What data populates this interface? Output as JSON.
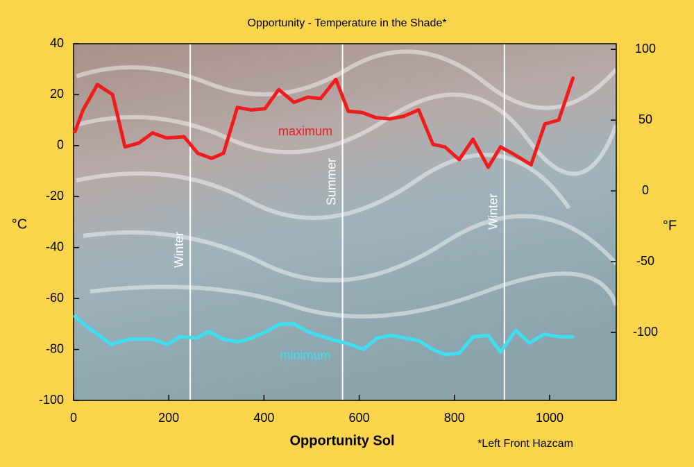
{
  "chart_data": {
    "type": "line",
    "title": "Opportunity - Temperature in the Shade*",
    "xlabel": "Opportunity Sol",
    "ylabel": "°C",
    "y2label": "°F",
    "footnote": "*Left Front Hazcam",
    "xlim": [
      0,
      1140
    ],
    "xticks": [
      0,
      200,
      400,
      600,
      800,
      1000
    ],
    "ylim": [
      -100,
      40
    ],
    "yticks": [
      -100,
      -80,
      -60,
      -40,
      -20,
      0,
      20,
      40
    ],
    "y2lim": [
      -148,
      104
    ],
    "y2ticks": [
      -100,
      -50,
      0,
      50,
      100
    ],
    "annotations": [
      {
        "text": "Winter",
        "x": 245
      },
      {
        "text": "Summer",
        "x": 565
      },
      {
        "text": "Winter",
        "x": 905
      }
    ],
    "series": [
      {
        "name": "maximum",
        "color": "#ee1c1c",
        "x": [
          3,
          20,
          50,
          82,
          108,
          137,
          166,
          195,
          232,
          261,
          290,
          315,
          344,
          373,
          402,
          431,
          463,
          492,
          519,
          551,
          577,
          606,
          635,
          664,
          693,
          725,
          755,
          780,
          810,
          839,
          871,
          897,
          926,
          961,
          990,
          1019,
          1049
        ],
        "values": [
          5.5,
          14,
          24,
          20,
          -0.5,
          1,
          5,
          3,
          3.5,
          -3,
          -5,
          -3,
          15,
          14,
          14.5,
          22,
          17,
          19,
          18.5,
          26,
          13.5,
          13,
          11,
          10.5,
          11.5,
          14,
          0.5,
          -0.5,
          -5.5,
          2.5,
          -8.5,
          -0.5,
          -3.5,
          -7.5,
          8.5,
          10,
          26.5
        ]
      },
      {
        "name": "minimum",
        "color": "#3ee0f0",
        "x": [
          3,
          28,
          79,
          115,
          166,
          197,
          224,
          258,
          284,
          315,
          345,
          374,
          405,
          434,
          463,
          492,
          523,
          551,
          580,
          609,
          638,
          667,
          696,
          725,
          755,
          780,
          810,
          839,
          871,
          897,
          929,
          958,
          988,
          1019,
          1049
        ],
        "values": [
          -67,
          -71,
          -78,
          -76,
          -76,
          -78,
          -75,
          -75.5,
          -73,
          -76,
          -77,
          -75.5,
          -73,
          -70,
          -70,
          -73,
          -75,
          -76.5,
          -78,
          -80,
          -75.5,
          -74.5,
          -75.5,
          -76.5,
          -80,
          -82,
          -81.5,
          -75,
          -74.5,
          -81,
          -72.5,
          -77.5,
          -74,
          -75,
          -75
        ]
      }
    ]
  }
}
